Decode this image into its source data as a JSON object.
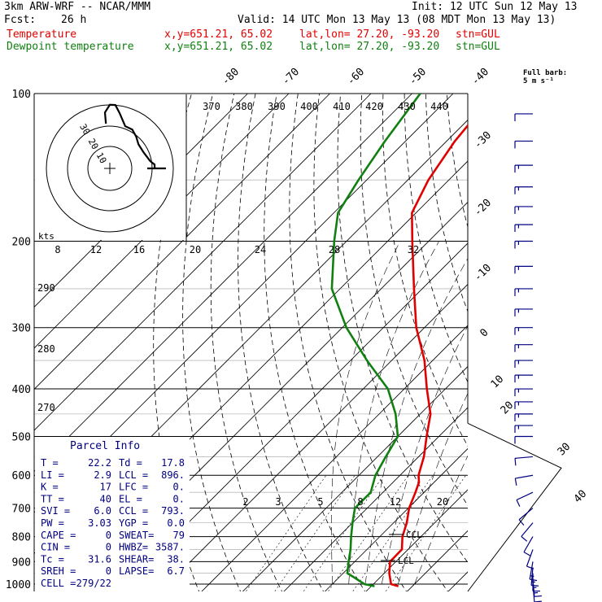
{
  "header": {
    "model": "3km ARW-WRF -- NCAR/MMM",
    "init": "Init: 12 UTC Sun 12 May 13",
    "fcst_label": "Fcst:",
    "fcst_value": "26 h",
    "valid": "Valid: 14 UTC Mon 13 May 13 (08 MDT Mon 13 May 13)",
    "temp_label": "Temperature",
    "dew_label": "Dewpoint temperature",
    "coords": "x,y=651.21, 65.02",
    "latlon": "lat,lon= 27.20, -93.20",
    "stn": "stn=GUL",
    "colors": {
      "temperature": "#e00000",
      "dewpoint": "#108010",
      "barbs": "#000080"
    }
  },
  "parcel": {
    "title": "Parcel Info",
    "rows": [
      [
        "T  =",
        "22.2",
        "Td =",
        "17.8"
      ],
      [
        "LI =",
        "2.9",
        "LCL =",
        "896."
      ],
      [
        "K  =",
        "17",
        "LFC =",
        "0."
      ],
      [
        "TT =",
        "40",
        "EL  =",
        "0."
      ],
      [
        "SVI =",
        "6.0",
        "CCL =",
        "793."
      ],
      [
        "PW =",
        "3.03",
        "YGP =",
        "0.0"
      ],
      [
        "CAPE =",
        "0",
        "SWEAT=",
        "79"
      ],
      [
        "CIN =",
        "0",
        "HWBZ=",
        "3587."
      ],
      [
        "Tc =",
        "31.6",
        "SHEAR=",
        "38."
      ],
      [
        "SREH =",
        "0",
        "LAPSE=",
        "6.7"
      ],
      [
        "CELL =",
        "279/22",
        "",
        ""
      ]
    ]
  },
  "barb_legend": {
    "title": "Full barb:",
    "value": "5 m s⁻¹"
  },
  "hodograph": {
    "unit": "kts",
    "ring_labels": [
      "10",
      "20",
      "30"
    ]
  },
  "markers": {
    "ccl": "CCL",
    "lcl": "LCL"
  },
  "chart_data": {
    "type": "line",
    "title": "",
    "y_axis": {
      "scale": "log",
      "label": "pressure",
      "ticks": [
        100,
        200,
        300,
        400,
        500,
        600,
        700,
        800,
        900,
        1000
      ],
      "range": [
        1020,
        100
      ]
    },
    "isotherm_labels": [
      "-80",
      "-70",
      "-60",
      "-50",
      "-40",
      "-30",
      "-20",
      "-10",
      "0",
      "10",
      "20",
      "30",
      "40"
    ],
    "theta_labels_top": [
      "370",
      "380",
      "390",
      "400",
      "410",
      "420",
      "430",
      "440"
    ],
    "theta_labels_left": [
      "290",
      "280",
      "270"
    ],
    "mixing_ratio_labels": [
      "2",
      "3",
      "5",
      "8",
      "12",
      "20"
    ],
    "hodo_speed_labels": [
      "8",
      "12",
      "16",
      "20",
      "24",
      "28",
      "32"
    ],
    "series": [
      {
        "name": "Temperature",
        "color": "#e00000",
        "points": [
          [
            1010,
            26.6
          ],
          [
            1000,
            24.3
          ],
          [
            950,
            21.2
          ],
          [
            900,
            18.6
          ],
          [
            850,
            18.5
          ],
          [
            800,
            15.5
          ],
          [
            750,
            13.2
          ],
          [
            700,
            10.2
          ],
          [
            650,
            7.9
          ],
          [
            620,
            6.3
          ],
          [
            600,
            4.5
          ],
          [
            550,
            1.3
          ],
          [
            500,
            -3.0
          ],
          [
            450,
            -7.5
          ],
          [
            400,
            -14.5
          ],
          [
            350,
            -22.0
          ],
          [
            300,
            -32.0
          ],
          [
            250,
            -42.0
          ],
          [
            200,
            -54.0
          ],
          [
            175,
            -61.0
          ],
          [
            150,
            -65.0
          ],
          [
            125,
            -68.0
          ],
          [
            100,
            -70.0
          ]
        ]
      },
      {
        "name": "Dewpoint temperature",
        "color": "#108010",
        "points": [
          [
            1010,
            20.8
          ],
          [
            1000,
            17.8
          ],
          [
            970,
            13.8
          ],
          [
            950,
            11.0
          ],
          [
            900,
            8.5
          ],
          [
            850,
            6.0
          ],
          [
            800,
            3.0
          ],
          [
            750,
            0.0
          ],
          [
            700,
            -3.0
          ],
          [
            650,
            -3.0
          ],
          [
            600,
            -6.0
          ],
          [
            550,
            -8.0
          ],
          [
            500,
            -10.0
          ],
          [
            450,
            -16.0
          ],
          [
            400,
            -24.0
          ],
          [
            350,
            -36.0
          ],
          [
            300,
            -49.0
          ],
          [
            250,
            -62.0
          ],
          [
            200,
            -73.0
          ],
          [
            175,
            -79.0
          ],
          [
            150,
            -82.0
          ],
          [
            125,
            -85.0
          ],
          [
            100,
            -88.0
          ]
        ]
      }
    ],
    "wind_barbs": [
      {
        "p": 1000,
        "dir": 175,
        "spd": 12
      },
      {
        "p": 975,
        "dir": 175,
        "spd": 15
      },
      {
        "p": 950,
        "dir": 180,
        "spd": 17
      },
      {
        "p": 925,
        "dir": 185,
        "spd": 17
      },
      {
        "p": 900,
        "dir": 190,
        "spd": 15
      },
      {
        "p": 850,
        "dir": 200,
        "spd": 12
      },
      {
        "p": 800,
        "dir": 210,
        "spd": 12
      },
      {
        "p": 750,
        "dir": 220,
        "spd": 11
      },
      {
        "p": 700,
        "dir": 230,
        "spd": 10
      },
      {
        "p": 650,
        "dir": 245,
        "spd": 10
      },
      {
        "p": 600,
        "dir": 260,
        "spd": 11
      },
      {
        "p": 550,
        "dir": 265,
        "spd": 12
      },
      {
        "p": 500,
        "dir": 270,
        "spd": 12
      },
      {
        "p": 475,
        "dir": 270,
        "spd": 14
      },
      {
        "p": 450,
        "dir": 270,
        "spd": 14
      },
      {
        "p": 425,
        "dir": 270,
        "spd": 14
      },
      {
        "p": 400,
        "dir": 270,
        "spd": 14
      },
      {
        "p": 375,
        "dir": 270,
        "spd": 15
      },
      {
        "p": 350,
        "dir": 270,
        "spd": 15
      },
      {
        "p": 325,
        "dir": 270,
        "spd": 14
      },
      {
        "p": 300,
        "dir": 270,
        "spd": 14
      },
      {
        "p": 275,
        "dir": 270,
        "spd": 15
      },
      {
        "p": 250,
        "dir": 270,
        "spd": 15
      },
      {
        "p": 225,
        "dir": 270,
        "spd": 15
      },
      {
        "p": 200,
        "dir": 270,
        "spd": 15
      },
      {
        "p": 185,
        "dir": 270,
        "spd": 15
      },
      {
        "p": 170,
        "dir": 270,
        "spd": 15
      },
      {
        "p": 155,
        "dir": 270,
        "spd": 15
      },
      {
        "p": 140,
        "dir": 270,
        "spd": 15
      },
      {
        "p": 125,
        "dir": 270,
        "spd": 10
      },
      {
        "p": 110,
        "dir": 270,
        "spd": 10
      }
    ]
  }
}
